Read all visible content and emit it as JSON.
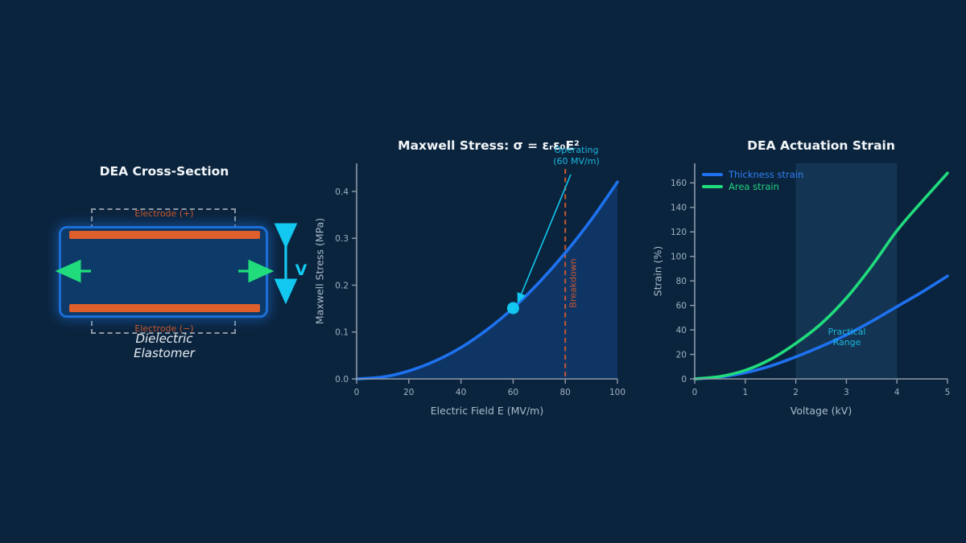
{
  "colors": {
    "background": "#0B243E",
    "panel_title": "#F2F6F8",
    "axis": "#8D9AA8",
    "tick_label": "#9FB2BF",
    "axis_label": "#A9BCC9",
    "blue_line": "#1E72F0",
    "blue_fill": "rgba(31,114,240,0.22)",
    "green_line": "#20DC7C",
    "cyan": "#12C8F0",
    "cyan_text": "#1CB6DC",
    "orange": "#DE5F2B",
    "orange_text": "#C7582E",
    "band_fill": "rgba(70,160,215,0.14)",
    "dashed_outline": "#8A96A3",
    "elastomer_fill": "#0D3A68",
    "elastomer_border": "#1C6FD6"
  },
  "left_panel": {
    "title": "DEA Cross-Section",
    "electrode_top_label": "Electrode (+)",
    "electrode_bottom_label": "Electrode (−)",
    "material_label_line1": "Dielectric",
    "material_label_line2": "Elastomer",
    "voltage_label": "V"
  },
  "chart_data": [
    {
      "id": "maxwell",
      "type": "area",
      "title": "Maxwell Stress: σ = εᵣε₀E²",
      "xlabel": "Electric Field E (MV/m)",
      "ylabel": "Maxwell Stress (MPa)",
      "xlim": [
        0,
        100
      ],
      "ylim": [
        0,
        0.46
      ],
      "xticks": [
        0,
        20,
        40,
        60,
        80,
        100
      ],
      "ytick_labels": [
        "0.0",
        "0.1",
        "0.2",
        "0.3",
        "0.4"
      ],
      "ytick_values": [
        0,
        0.1,
        0.2,
        0.3,
        0.4
      ],
      "grid": false,
      "x": [
        0,
        10,
        20,
        30,
        40,
        50,
        60,
        70,
        80,
        90,
        100
      ],
      "y": [
        0,
        0.004,
        0.017,
        0.038,
        0.067,
        0.105,
        0.151,
        0.206,
        0.269,
        0.34,
        0.42
      ],
      "breakdown": {
        "x": 80,
        "label": "Breakdown"
      },
      "operating_point": {
        "x": 60,
        "y": 0.151,
        "label_line1": "Operating",
        "label_line2": "(60 MV/m)"
      }
    },
    {
      "id": "strain",
      "type": "line",
      "title": "DEA Actuation Strain",
      "xlabel": "Voltage (kV)",
      "ylabel": "Strain (%)",
      "xlim": [
        0,
        5
      ],
      "ylim": [
        0,
        176
      ],
      "xticks": [
        0,
        1,
        2,
        3,
        4,
        5
      ],
      "yticks": [
        0,
        20,
        40,
        60,
        80,
        100,
        120,
        140,
        160
      ],
      "grid": false,
      "legend_position": "upper-left",
      "x": [
        0,
        0.5,
        1,
        1.5,
        2,
        2.5,
        3,
        3.5,
        4,
        4.5,
        5
      ],
      "series": [
        {
          "name": "Thickness strain",
          "color": "#1E72F0",
          "values": [
            0,
            1.5,
            5,
            10.5,
            18,
            26.5,
            36,
            47,
            59,
            71,
            84
          ]
        },
        {
          "name": "Area strain",
          "color": "#20DC7C",
          "values": [
            0,
            2,
            7,
            16,
            29,
            45,
            66,
            92,
            121,
            145,
            168
          ]
        }
      ],
      "band": {
        "from": 2,
        "to": 4,
        "label_line1": "Practical",
        "label_line2": "Range"
      }
    }
  ]
}
